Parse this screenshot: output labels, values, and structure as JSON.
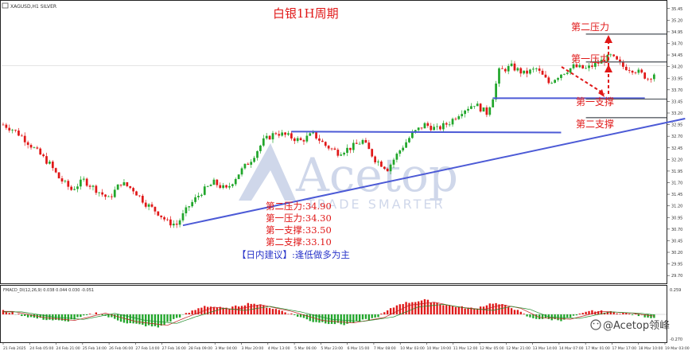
{
  "header": {
    "symbol_info": "XAGUSD,H1 SILVER",
    "chart_title": "白银1H周期"
  },
  "watermark": {
    "brand": "Acetop",
    "tagline": "TRADE SMARTER"
  },
  "levels": {
    "resistance2_label": "第二压力",
    "resistance1_label": "第一压力",
    "support1_label": "第一支撑",
    "support2_label": "第二支撑"
  },
  "annotation": {
    "r2": "第二压力:34.90",
    "r1": "第一压力:34.30",
    "s1": "第一支撑:33.50",
    "s2": "第二支撑:33.10",
    "advice": "【日内建议】:逢低做多为主"
  },
  "indicator": {
    "label": "FMACD_DI(12,26,9) 0.038 0.044 0.030 -0.051",
    "axis_top": "0.259",
    "axis_bottom": "-0.270"
  },
  "credit": "@Acetop领峰",
  "colors": {
    "bull": "#21a62b",
    "bear": "#e01818",
    "trend": "#4c5ad6",
    "level": "#5a5f66",
    "red_text": "#e01818",
    "blue_text": "#2a35c9"
  },
  "chart_data": {
    "type": "candlestick",
    "y_ticks": [
      "35.45",
      "35.20",
      "34.95",
      "34.70",
      "34.45",
      "34.20",
      "33.95",
      "33.70",
      "33.45",
      "33.20",
      "32.95",
      "32.70",
      "32.45",
      "32.20",
      "31.95",
      "31.70",
      "31.45",
      "31.20",
      "30.95",
      "30.70",
      "30.45",
      "30.20",
      "29.95",
      "29.70"
    ],
    "x_ticks": [
      "21 Feb 2025",
      "24 Feb 05:00",
      "24 Feb 21:00",
      "25 Feb 14:00",
      "26 Feb 06:00",
      "27 Feb 14:00",
      "27 Feb 16:00",
      "28 Feb 09:00",
      "3 Mar 04:00",
      "3 Mar 20:00",
      "4 Mar 13:00",
      "5 Mar 06:00",
      "5 Mar 23:00",
      "6 Mar 15:00",
      "7 Mar 08:00",
      "10 Mar 03:00",
      "10 Mar 19:00",
      "11 Mar 12:00",
      "12 Mar 05:00",
      "12 Mar 21:00",
      "13 Mar 14:00",
      "14 Mar 07:00",
      "17 Mar 01:00",
      "17 Mar 17:00",
      "18 Mar 10:00",
      "19 Mar 03:00"
    ],
    "y_range": [
      29.6,
      35.6
    ],
    "current_price": 34.22,
    "levels": {
      "resistance2": 34.9,
      "resistance1": 34.3,
      "support1": 33.5,
      "support2": 33.1
    },
    "path_points": [
      [
        0,
        32.95
      ],
      [
        3,
        32.85
      ],
      [
        6,
        32.7
      ],
      [
        9,
        32.5
      ],
      [
        12,
        32.3
      ],
      [
        15,
        32.1
      ],
      [
        18,
        31.8
      ],
      [
        22,
        31.55
      ],
      [
        26,
        31.75
      ],
      [
        30,
        31.55
      ],
      [
        34,
        31.35
      ],
      [
        38,
        31.7
      ],
      [
        42,
        31.55
      ],
      [
        46,
        31.25
      ],
      [
        50,
        31.05
      ],
      [
        53,
        30.85
      ],
      [
        56,
        30.8
      ],
      [
        60,
        31.2
      ],
      [
        64,
        31.5
      ],
      [
        68,
        31.7
      ],
      [
        72,
        31.55
      ],
      [
        76,
        31.9
      ],
      [
        80,
        32.2
      ],
      [
        84,
        32.6
      ],
      [
        88,
        32.78
      ],
      [
        92,
        32.7
      ],
      [
        96,
        32.6
      ],
      [
        100,
        32.75
      ],
      [
        104,
        32.5
      ],
      [
        108,
        32.35
      ],
      [
        112,
        32.45
      ],
      [
        116,
        32.6
      ],
      [
        120,
        32.2
      ],
      [
        124,
        32.0
      ],
      [
        128,
        32.4
      ],
      [
        132,
        32.75
      ],
      [
        136,
        32.95
      ],
      [
        140,
        32.85
      ],
      [
        144,
        33.0
      ],
      [
        148,
        33.25
      ],
      [
        152,
        33.4
      ],
      [
        156,
        33.2
      ],
      [
        158,
        33.55
      ],
      [
        160,
        34.1
      ],
      [
        164,
        34.2
      ],
      [
        168,
        34.05
      ],
      [
        172,
        34.15
      ],
      [
        176,
        33.85
      ],
      [
        180,
        34.05
      ],
      [
        184,
        34.2
      ],
      [
        188,
        34.15
      ],
      [
        192,
        34.28
      ],
      [
        196,
        34.42
      ],
      [
        200,
        34.2
      ],
      [
        204,
        34.12
      ],
      [
        208,
        33.95
      ],
      [
        210,
        34.05
      ]
    ],
    "trendlines": [
      {
        "from": [
          58,
          30.78
        ],
        "to": [
          220,
          33.08
        ]
      },
      {
        "from": [
          93,
          32.8
        ],
        "to": [
          180,
          32.78
        ]
      },
      {
        "from": [
          158,
          33.52
        ],
        "to": [
          207,
          33.52
        ]
      }
    ],
    "macd_path": [
      [
        0,
        0.05
      ],
      [
        10,
        -0.05
      ],
      [
        20,
        -0.1
      ],
      [
        30,
        0.02
      ],
      [
        40,
        -0.12
      ],
      [
        50,
        -0.18
      ],
      [
        56,
        -0.05
      ],
      [
        65,
        0.12
      ],
      [
        72,
        0.08
      ],
      [
        80,
        0.16
      ],
      [
        90,
        0.05
      ],
      [
        100,
        -0.1
      ],
      [
        110,
        -0.14
      ],
      [
        120,
        -0.05
      ],
      [
        128,
        0.15
      ],
      [
        136,
        0.2
      ],
      [
        144,
        0.12
      ],
      [
        152,
        0.08
      ],
      [
        158,
        0.16
      ],
      [
        164,
        0.1
      ],
      [
        170,
        -0.05
      ],
      [
        180,
        -0.08
      ],
      [
        190,
        0.05
      ],
      [
        200,
        0.02
      ],
      [
        210,
        -0.05
      ]
    ]
  }
}
